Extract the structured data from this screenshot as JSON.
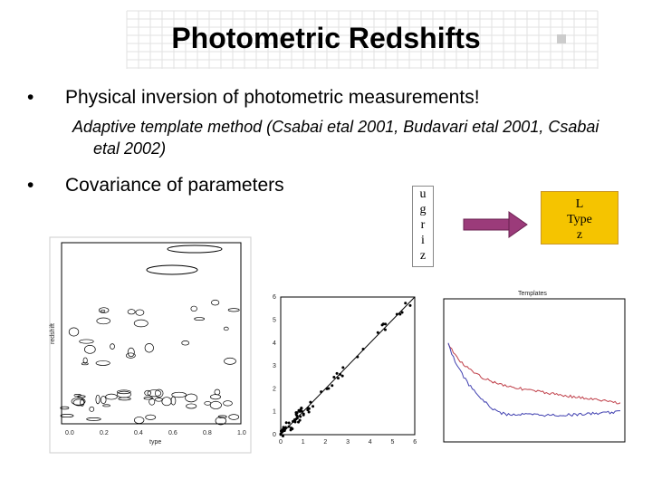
{
  "title": "Photometric Redshifts",
  "bullets": [
    {
      "text": "Physical inversion of photometric measurements!",
      "sub": "Adaptive template method (Csabai etal 2001, Budavari etal 2001, Csabai etal 2002)"
    },
    {
      "text": "Covariance of parameters"
    }
  ],
  "inputs": [
    "u",
    "g",
    "r",
    "i",
    "z"
  ],
  "outputs": [
    "L",
    "Type",
    "z"
  ],
  "figures": {
    "left": {
      "x_label": "type",
      "y_label": "redshift",
      "x_ticks": [
        "0.0",
        "0.2",
        "0.4",
        "0.6",
        "0.8",
        "1.0"
      ]
    },
    "middle": {
      "x_ticks": [
        "0",
        "1",
        "2",
        "3",
        "4",
        "5",
        "6"
      ],
      "y_ticks": [
        "0",
        "1",
        "2",
        "3",
        "4",
        "5",
        "6"
      ]
    },
    "right": {
      "title": "Templates"
    }
  }
}
